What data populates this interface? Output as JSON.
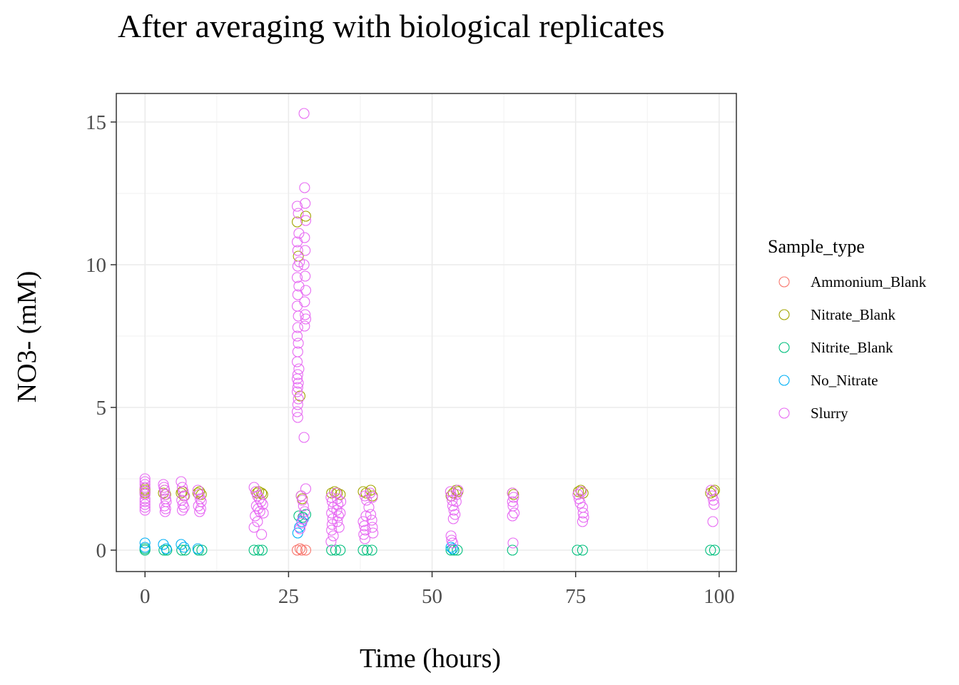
{
  "chart_data": {
    "type": "scatter",
    "title": "After averaging with biological replicates",
    "xlabel": "Time (hours)",
    "ylabel": "NO3- (mM)",
    "xlim": [
      -5,
      103
    ],
    "ylim": [
      -0.75,
      16
    ],
    "x_ticks": [
      0,
      25,
      50,
      75,
      100
    ],
    "y_ticks": [
      0,
      5,
      10,
      15
    ],
    "grid": true,
    "legend": {
      "title": "Sample_type",
      "position": "right"
    },
    "series": [
      {
        "name": "Ammonium_Blank",
        "color": "#F8766D",
        "points": [
          [
            26.5,
            0.0
          ],
          [
            27.3,
            0.0
          ],
          [
            28.0,
            0.0
          ],
          [
            27.0,
            0.05
          ]
        ]
      },
      {
        "name": "Nitrate_Blank",
        "color": "#A3A500",
        "points": [
          [
            0,
            2.05
          ],
          [
            0,
            2.1
          ],
          [
            0,
            2.15
          ],
          [
            0,
            2.0
          ],
          [
            3.2,
            2.0
          ],
          [
            3.4,
            2.1
          ],
          [
            3.6,
            1.95
          ],
          [
            6.3,
            2.0
          ],
          [
            6.5,
            2.05
          ],
          [
            6.8,
            1.9
          ],
          [
            9.2,
            2.0
          ],
          [
            9.5,
            2.05
          ],
          [
            9.8,
            1.95
          ],
          [
            19.5,
            2.0
          ],
          [
            19.8,
            2.05
          ],
          [
            20.3,
            2.0
          ],
          [
            20.5,
            1.95
          ],
          [
            26.5,
            11.5
          ],
          [
            26.7,
            10.3
          ],
          [
            27.0,
            5.4
          ],
          [
            27.2,
            1.9
          ],
          [
            27.4,
            1.8
          ],
          [
            28.0,
            11.7
          ],
          [
            32.5,
            2.0
          ],
          [
            33.0,
            2.05
          ],
          [
            33.5,
            2.0
          ],
          [
            34.0,
            1.95
          ],
          [
            38.0,
            2.05
          ],
          [
            38.5,
            2.0
          ],
          [
            39.3,
            2.1
          ],
          [
            39.6,
            1.9
          ],
          [
            53.3,
            1.9
          ],
          [
            53.7,
            2.0
          ],
          [
            54.2,
            2.1
          ],
          [
            54.5,
            2.05
          ],
          [
            64.0,
            2.0
          ],
          [
            64.2,
            1.95
          ],
          [
            75.5,
            2.05
          ],
          [
            75.9,
            2.1
          ],
          [
            76.3,
            2.0
          ],
          [
            98.5,
            2.0
          ],
          [
            99.0,
            2.05
          ],
          [
            99.2,
            2.1
          ]
        ]
      },
      {
        "name": "Nitrite_Blank",
        "color": "#00BF7D",
        "points": [
          [
            0,
            0.0
          ],
          [
            0,
            0.05
          ],
          [
            3.3,
            0.0
          ],
          [
            3.8,
            0.0
          ],
          [
            6.4,
            0.0
          ],
          [
            7.0,
            0.0
          ],
          [
            9.3,
            0.0
          ],
          [
            9.9,
            0.0
          ],
          [
            19.0,
            0.0
          ],
          [
            19.8,
            0.0
          ],
          [
            20.4,
            0.0
          ],
          [
            26.8,
            1.2
          ],
          [
            27.5,
            1.15
          ],
          [
            28.0,
            1.25
          ],
          [
            32.5,
            0.0
          ],
          [
            33.2,
            0.0
          ],
          [
            34.0,
            0.0
          ],
          [
            38.0,
            0.0
          ],
          [
            38.7,
            0.0
          ],
          [
            39.5,
            0.0
          ],
          [
            53.3,
            0.0
          ],
          [
            53.8,
            0.0
          ],
          [
            54.4,
            0.0
          ],
          [
            64.0,
            0.0
          ],
          [
            75.3,
            0.0
          ],
          [
            76.2,
            0.0
          ],
          [
            98.5,
            0.0
          ],
          [
            99.2,
            0.0
          ]
        ]
      },
      {
        "name": "No_Nitrate",
        "color": "#00B0F6",
        "points": [
          [
            0,
            0.25
          ],
          [
            0,
            0.1
          ],
          [
            3.2,
            0.2
          ],
          [
            3.7,
            0.05
          ],
          [
            6.3,
            0.2
          ],
          [
            6.8,
            0.1
          ],
          [
            9.2,
            0.05
          ],
          [
            26.6,
            0.6
          ],
          [
            26.9,
            0.8
          ],
          [
            27.3,
            1.0
          ],
          [
            27.6,
            1.1
          ],
          [
            53.3,
            0.1
          ],
          [
            53.6,
            0.05
          ]
        ]
      },
      {
        "name": "Slurry",
        "color": "#E76BF3",
        "points": [
          [
            0,
            2.5
          ],
          [
            0,
            2.4
          ],
          [
            0,
            2.3
          ],
          [
            0,
            2.2
          ],
          [
            0,
            2.05
          ],
          [
            0,
            1.95
          ],
          [
            0,
            1.8
          ],
          [
            0,
            1.7
          ],
          [
            0,
            1.6
          ],
          [
            0,
            1.5
          ],
          [
            0,
            1.4
          ],
          [
            3.2,
            2.3
          ],
          [
            3.3,
            2.2
          ],
          [
            3.4,
            2.1
          ],
          [
            3.5,
            1.95
          ],
          [
            3.6,
            1.8
          ],
          [
            3.7,
            1.7
          ],
          [
            3.4,
            1.55
          ],
          [
            3.6,
            1.45
          ],
          [
            3.5,
            1.35
          ],
          [
            6.3,
            2.4
          ],
          [
            6.5,
            2.2
          ],
          [
            6.7,
            2.05
          ],
          [
            6.9,
            1.9
          ],
          [
            6.4,
            1.75
          ],
          [
            6.6,
            1.6
          ],
          [
            6.8,
            1.5
          ],
          [
            6.5,
            1.4
          ],
          [
            9.2,
            2.1
          ],
          [
            9.4,
            1.95
          ],
          [
            9.6,
            1.8
          ],
          [
            9.8,
            1.7
          ],
          [
            9.3,
            1.55
          ],
          [
            9.7,
            1.45
          ],
          [
            9.5,
            1.35
          ],
          [
            19.0,
            2.2
          ],
          [
            19.3,
            2.05
          ],
          [
            19.6,
            1.9
          ],
          [
            19.9,
            1.8
          ],
          [
            20.2,
            1.7
          ],
          [
            19.4,
            1.55
          ],
          [
            19.7,
            1.45
          ],
          [
            20.0,
            1.35
          ],
          [
            19.2,
            1.2
          ],
          [
            19.6,
            1.0
          ],
          [
            19.0,
            0.8
          ],
          [
            20.3,
            0.55
          ],
          [
            20.6,
            1.3
          ],
          [
            20.5,
            1.6
          ],
          [
            26.5,
            12.05
          ],
          [
            26.7,
            11.8
          ],
          [
            26.8,
            11.1
          ],
          [
            26.5,
            10.8
          ],
          [
            26.6,
            10.5
          ],
          [
            26.9,
            10.1
          ],
          [
            26.6,
            9.95
          ],
          [
            26.5,
            9.55
          ],
          [
            26.8,
            9.25
          ],
          [
            26.6,
            8.95
          ],
          [
            26.5,
            8.55
          ],
          [
            26.7,
            8.2
          ],
          [
            26.6,
            7.8
          ],
          [
            26.5,
            7.5
          ],
          [
            26.7,
            7.25
          ],
          [
            26.6,
            6.95
          ],
          [
            26.5,
            6.6
          ],
          [
            26.8,
            6.35
          ],
          [
            26.6,
            6.15
          ],
          [
            26.5,
            6.0
          ],
          [
            26.7,
            5.85
          ],
          [
            26.6,
            5.7
          ],
          [
            26.5,
            5.55
          ],
          [
            26.7,
            5.3
          ],
          [
            26.6,
            5.1
          ],
          [
            26.5,
            4.85
          ],
          [
            26.6,
            4.65
          ],
          [
            27.7,
            15.3
          ],
          [
            27.8,
            12.7
          ],
          [
            27.9,
            12.15
          ],
          [
            28.0,
            11.55
          ],
          [
            27.8,
            10.95
          ],
          [
            27.9,
            10.5
          ],
          [
            27.7,
            10.0
          ],
          [
            27.9,
            9.6
          ],
          [
            28.0,
            9.1
          ],
          [
            27.8,
            8.7
          ],
          [
            27.9,
            8.25
          ],
          [
            28.0,
            8.1
          ],
          [
            27.8,
            7.85
          ],
          [
            27.7,
            3.95
          ],
          [
            28.0,
            2.15
          ],
          [
            27.2,
            1.9
          ],
          [
            27.4,
            1.75
          ],
          [
            27.6,
            1.55
          ],
          [
            27.8,
            1.35
          ],
          [
            27.5,
            1.1
          ],
          [
            27.3,
            0.95
          ],
          [
            27.0,
            0.75
          ],
          [
            32.4,
            1.85
          ],
          [
            32.6,
            1.7
          ],
          [
            32.8,
            1.5
          ],
          [
            32.5,
            1.3
          ],
          [
            32.7,
            1.1
          ],
          [
            32.6,
            0.9
          ],
          [
            32.5,
            0.7
          ],
          [
            32.8,
            0.5
          ],
          [
            32.4,
            0.3
          ],
          [
            33.3,
            2.0
          ],
          [
            33.5,
            1.8
          ],
          [
            33.6,
            1.6
          ],
          [
            33.4,
            1.4
          ],
          [
            33.7,
            1.2
          ],
          [
            33.5,
            1.0
          ],
          [
            33.8,
            0.8
          ],
          [
            34.0,
            1.3
          ],
          [
            34.1,
            1.7
          ],
          [
            38.0,
            1.0
          ],
          [
            38.2,
            0.85
          ],
          [
            38.4,
            0.7
          ],
          [
            38.1,
            0.55
          ],
          [
            38.3,
            0.4
          ],
          [
            38.5,
            1.2
          ],
          [
            38.3,
            1.9
          ],
          [
            38.6,
            1.75
          ],
          [
            39.0,
            1.5
          ],
          [
            39.3,
            1.25
          ],
          [
            39.5,
            1.05
          ],
          [
            39.6,
            0.8
          ],
          [
            39.7,
            0.6
          ],
          [
            39.2,
            2.0
          ],
          [
            39.6,
            1.85
          ],
          [
            53.2,
            2.05
          ],
          [
            53.4,
            1.9
          ],
          [
            53.5,
            1.75
          ],
          [
            53.6,
            1.55
          ],
          [
            53.8,
            1.4
          ],
          [
            54.0,
            1.25
          ],
          [
            53.7,
            1.1
          ],
          [
            53.3,
            0.5
          ],
          [
            53.4,
            0.35
          ],
          [
            53.6,
            0.25
          ],
          [
            54.2,
            1.7
          ],
          [
            54.5,
            2.1
          ],
          [
            54.3,
            1.95
          ],
          [
            64.0,
            2.0
          ],
          [
            64.2,
            1.85
          ],
          [
            64.0,
            1.7
          ],
          [
            64.1,
            1.55
          ],
          [
            64.3,
            1.3
          ],
          [
            64.0,
            1.2
          ],
          [
            64.1,
            0.25
          ],
          [
            75.4,
            1.95
          ],
          [
            75.6,
            1.8
          ],
          [
            75.8,
            1.65
          ],
          [
            76.0,
            2.05
          ],
          [
            76.2,
            1.5
          ],
          [
            76.3,
            1.3
          ],
          [
            76.4,
            1.15
          ],
          [
            76.2,
            1.0
          ],
          [
            98.6,
            2.1
          ],
          [
            98.8,
            1.9
          ],
          [
            99.0,
            1.75
          ],
          [
            99.1,
            1.6
          ],
          [
            98.9,
            1.0
          ]
        ]
      }
    ]
  }
}
